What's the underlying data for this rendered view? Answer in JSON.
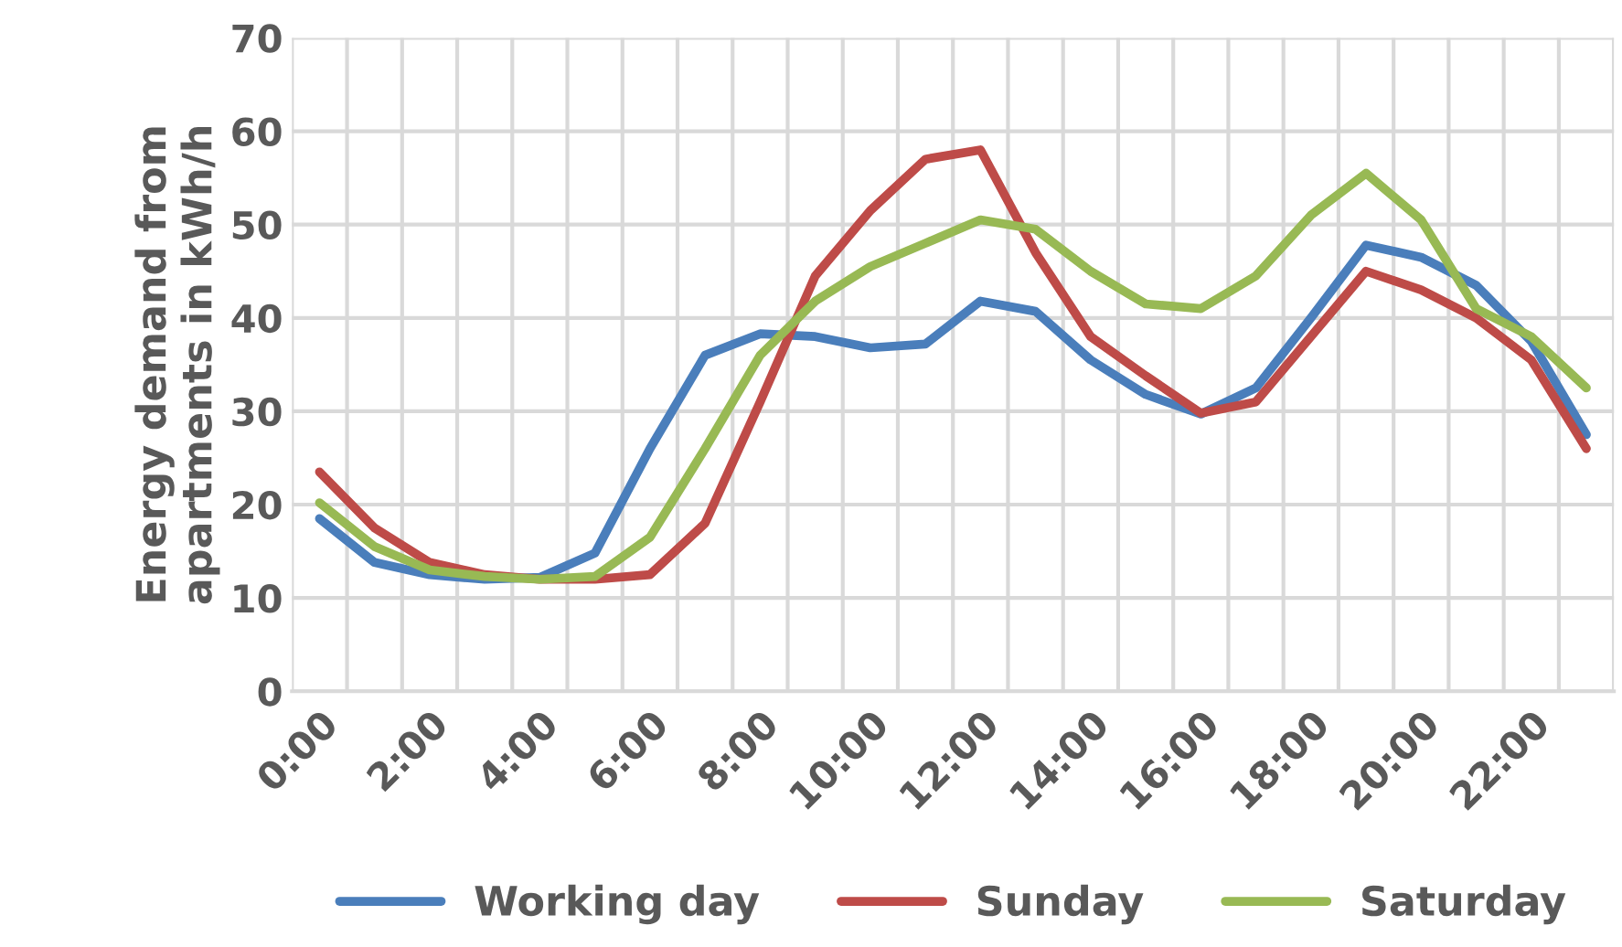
{
  "chart_data": {
    "type": "line",
    "ylabel": "Energy demand from\napartments in kWh/h",
    "categories": [
      "0:00",
      null,
      "2:00",
      null,
      "4:00",
      null,
      "6:00",
      null,
      "8:00",
      null,
      "10:00",
      null,
      "12:00",
      null,
      "14:00",
      null,
      "16:00",
      null,
      "18:00",
      null,
      "20:00",
      null,
      "22:00",
      null
    ],
    "series": [
      {
        "name": "Working day",
        "color": "#4a7ebb",
        "values": [
          18.5,
          13.8,
          12.5,
          12,
          12.2,
          14.8,
          26,
          36,
          38.3,
          38,
          36.8,
          37.2,
          41.8,
          40.7,
          35.5,
          31.8,
          29.7,
          32.5,
          40,
          47.8,
          46.5,
          43.5,
          37.5,
          27.5
        ]
      },
      {
        "name": "Sunday",
        "color": "#be4b48",
        "values": [
          23.5,
          17.5,
          13.8,
          12.5,
          12,
          12,
          12.5,
          18,
          31,
          44.5,
          51.5,
          57,
          58,
          47,
          38,
          33.8,
          29.8,
          31,
          38,
          45,
          43,
          40,
          35.5,
          26
        ]
      },
      {
        "name": "Saturday",
        "color": "#98b954",
        "values": [
          20.2,
          15.5,
          13,
          12.3,
          12,
          12.3,
          16.5,
          26,
          36,
          41.8,
          45.5,
          48,
          50.5,
          49.5,
          45,
          41.5,
          41,
          44.5,
          51,
          55.5,
          50.5,
          41,
          38,
          32.5
        ]
      }
    ],
    "ylim": [
      0,
      70
    ],
    "yticks": [
      0,
      10,
      20,
      30,
      40,
      50,
      60,
      70
    ],
    "grid": true,
    "legend": "bottom",
    "marker": "none",
    "line_style": "solid"
  }
}
